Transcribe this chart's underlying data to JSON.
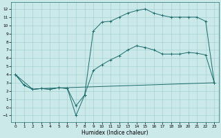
{
  "xlabel": "Humidex (Indice chaleur)",
  "xlim": [
    -0.5,
    23.5
  ],
  "ylim": [
    -1.8,
    12.8
  ],
  "xticks": [
    0,
    1,
    2,
    3,
    4,
    5,
    6,
    7,
    8,
    9,
    10,
    11,
    12,
    13,
    14,
    15,
    16,
    17,
    18,
    19,
    20,
    21,
    22,
    23
  ],
  "yticks": [
    -1,
    0,
    1,
    2,
    3,
    4,
    5,
    6,
    7,
    8,
    9,
    10,
    11,
    12
  ],
  "bg_color": "#cce9e9",
  "line_color": "#1a6b6b",
  "grid_color": "#9ecece",
  "line1_x": [
    0,
    1,
    2,
    3,
    4,
    5,
    6,
    7,
    8,
    9,
    10,
    11,
    12,
    13,
    14,
    15,
    16,
    17,
    18,
    19,
    20,
    21,
    22,
    23
  ],
  "line1_y": [
    4.0,
    2.7,
    2.2,
    2.3,
    2.2,
    2.4,
    2.3,
    -1.0,
    1.5,
    9.3,
    10.4,
    10.5,
    11.0,
    11.5,
    11.8,
    12.0,
    11.5,
    11.2,
    11.0,
    11.0,
    11.0,
    11.0,
    10.5,
    3.0
  ],
  "line2_x": [
    0,
    1,
    2,
    3,
    4,
    5,
    6,
    7,
    8,
    9,
    10,
    11,
    12,
    13,
    14,
    15,
    16,
    17,
    18,
    19,
    20,
    21,
    22,
    23
  ],
  "line2_y": [
    4.0,
    2.7,
    2.2,
    2.3,
    2.2,
    2.4,
    2.3,
    0.2,
    1.5,
    4.5,
    5.2,
    5.8,
    6.3,
    7.0,
    7.5,
    7.3,
    7.0,
    6.5,
    6.5,
    6.5,
    6.7,
    6.6,
    6.4,
    3.0
  ],
  "line3_x": [
    0,
    2,
    3,
    23
  ],
  "line3_y": [
    4.0,
    2.2,
    2.3,
    3.0
  ]
}
